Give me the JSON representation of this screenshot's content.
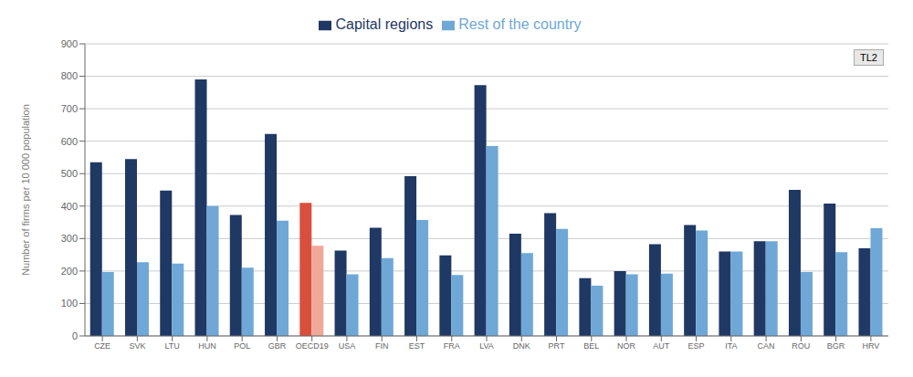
{
  "chart_data": {
    "type": "bar",
    "categories": [
      "CZE",
      "SVK",
      "LTU",
      "HUN",
      "POL",
      "GBR",
      "OECD19",
      "USA",
      "FIN",
      "EST",
      "FRA",
      "LVA",
      "DNK",
      "PRT",
      "BEL",
      "NOR",
      "AUT",
      "ESP",
      "ITA",
      "CAN",
      "ROU",
      "BGR",
      "HRV"
    ],
    "series": [
      {
        "name": "Capital regions",
        "color": "#1f3864",
        "colors": [
          "#1f3864",
          "#1f3864",
          "#1f3864",
          "#1f3864",
          "#1f3864",
          "#1f3864",
          "#d94f3d",
          "#1f3864",
          "#1f3864",
          "#1f3864",
          "#1f3864",
          "#1f3864",
          "#1f3864",
          "#1f3864",
          "#1f3864",
          "#1f3864",
          "#1f3864",
          "#1f3864",
          "#1f3864",
          "#1f3864",
          "#1f3864",
          "#1f3864",
          "#1f3864"
        ],
        "values": [
          535,
          545,
          448,
          790,
          373,
          622,
          410,
          263,
          333,
          492,
          248,
          773,
          315,
          378,
          178,
          200,
          283,
          342,
          260,
          292,
          450,
          408,
          270
        ]
      },
      {
        "name": "Rest of the country",
        "color": "#6fa8d6",
        "colors": [
          "#6fa8d6",
          "#6fa8d6",
          "#6fa8d6",
          "#6fa8d6",
          "#6fa8d6",
          "#6fa8d6",
          "#f0a898",
          "#6fa8d6",
          "#6fa8d6",
          "#6fa8d6",
          "#6fa8d6",
          "#6fa8d6",
          "#6fa8d6",
          "#6fa8d6",
          "#6fa8d6",
          "#6fa8d6",
          "#6fa8d6",
          "#6fa8d6",
          "#6fa8d6",
          "#6fa8d6",
          "#6fa8d6",
          "#6fa8d6",
          "#6fa8d6"
        ],
        "values": [
          197,
          227,
          223,
          400,
          210,
          355,
          278,
          190,
          240,
          357,
          188,
          585,
          255,
          330,
          155,
          190,
          192,
          325,
          260,
          292,
          197,
          258,
          332
        ]
      }
    ],
    "ylabel": "Number of firms per 10 000 population",
    "ylim": [
      0,
      900
    ],
    "yticks": [
      0,
      100,
      200,
      300,
      400,
      500,
      600,
      700,
      800,
      900
    ],
    "grid": true,
    "legend": "top",
    "annotations": [
      "TL2"
    ]
  }
}
